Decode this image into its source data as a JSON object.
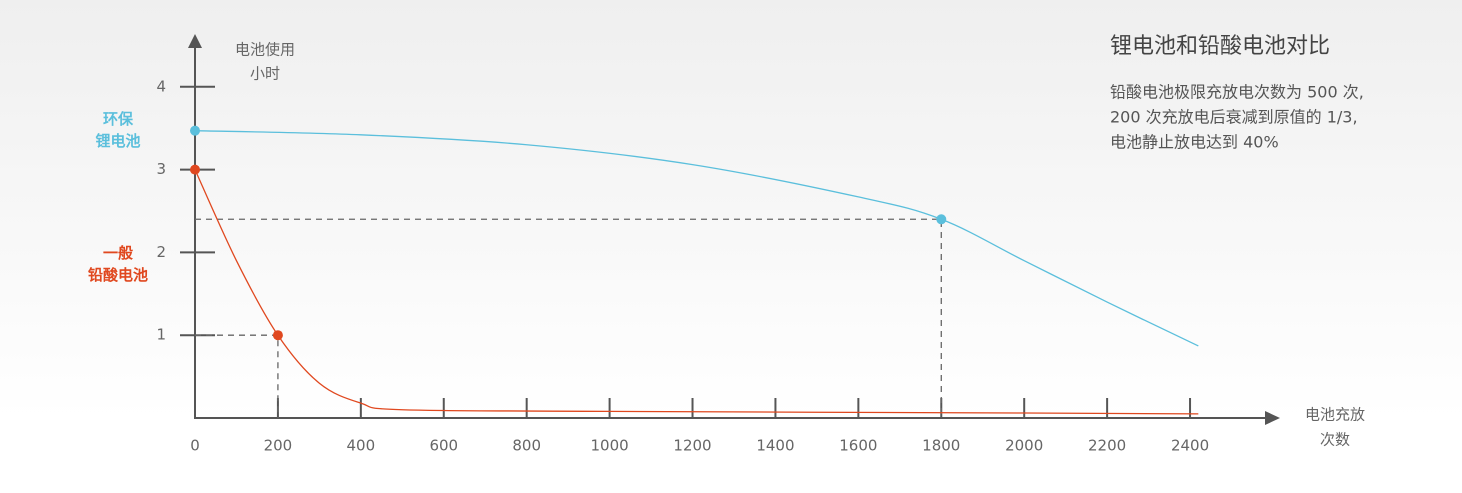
{
  "chart_data": {
    "type": "line",
    "title": "锂电池和铅酸电池对比",
    "annotation": [
      "铅酸电池极限充放电次数为 500 次,",
      "200 次充放电后衰减到原值的 1/3,",
      "电池静止放电达到 40%"
    ],
    "x_label": [
      "电池充放",
      "次数"
    ],
    "y_label": [
      "电池使用",
      "小时"
    ],
    "series": [
      {
        "name": [
          "环保",
          "锂电池"
        ],
        "color": "#5bbfdc",
        "x": [
          0,
          400,
          800,
          1200,
          1600,
          1800,
          2000,
          2200,
          2420
        ],
        "values": [
          3.47,
          3.42,
          3.3,
          3.06,
          2.67,
          2.4,
          1.9,
          1.4,
          0.87
        ],
        "marked": [
          0,
          5
        ]
      },
      {
        "name": [
          "一般",
          "铅酸电池"
        ],
        "color": "#e0481f",
        "x": [
          0,
          100,
          200,
          300,
          400,
          500,
          1000,
          2000,
          2420
        ],
        "values": [
          3,
          1.9,
          1,
          0.42,
          0.18,
          0.1,
          0.08,
          0.06,
          0.05
        ],
        "marked": [
          0,
          2
        ]
      }
    ],
    "xlim": [
      0,
      2600
    ],
    "ylim": [
      0,
      4.6
    ],
    "xticks": [
      0,
      200,
      400,
      600,
      800,
      1000,
      1200,
      1400,
      1600,
      1800,
      2000,
      2200,
      2400
    ],
    "yticks": [
      1,
      2,
      3,
      4
    ]
  }
}
